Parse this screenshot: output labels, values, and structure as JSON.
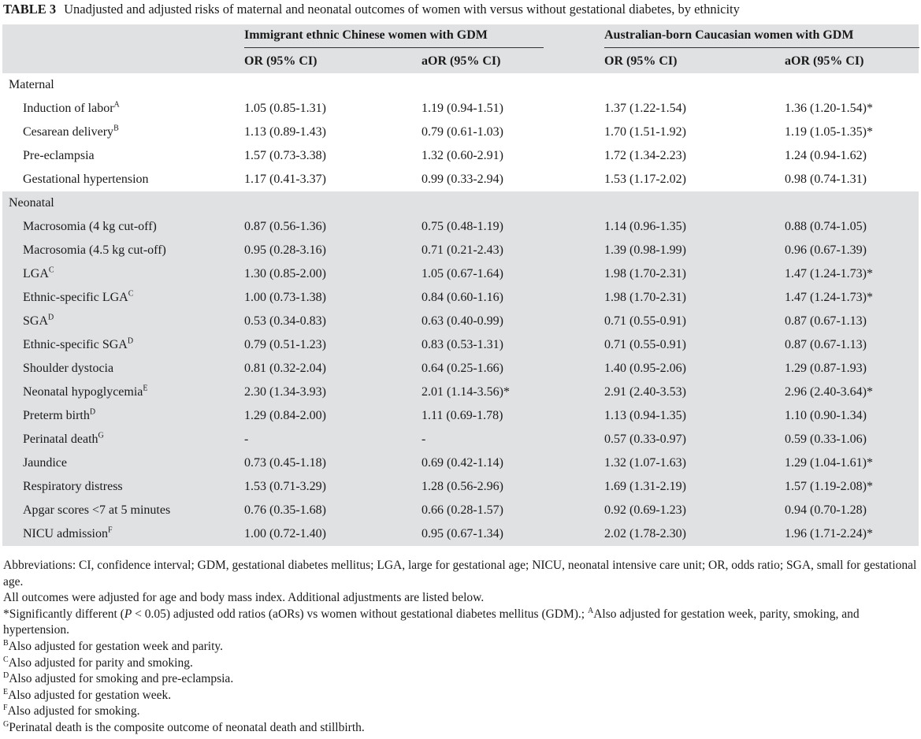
{
  "caption": {
    "label": "TABLE 3",
    "text": "Unadjusted and adjusted risks of maternal and neonatal outcomes of women with versus without gestational diabetes, by ethnicity"
  },
  "header": {
    "group1": "Immigrant ethnic Chinese women with GDM",
    "group2": "Australian-born Caucasian women with GDM",
    "or": "OR (95% CI)",
    "aor": "aOR (95% CI)"
  },
  "sections": {
    "maternal": "Maternal",
    "neonatal": "Neonatal"
  },
  "maternal_rows": [
    {
      "name": "Induction of labor",
      "sup": "A",
      "c1": "1.05 (0.85-1.31)",
      "c2": "1.19 (0.94-1.51)",
      "c3": "1.37 (1.22-1.54)",
      "c4": "1.36 (1.20-1.54)*"
    },
    {
      "name": "Cesarean delivery",
      "sup": "B",
      "c1": "1.13 (0.89-1.43)",
      "c2": "0.79 (0.61-1.03)",
      "c3": "1.70 (1.51-1.92)",
      "c4": "1.19 (1.05-1.35)*"
    },
    {
      "name": "Pre-eclampsia",
      "sup": "",
      "c1": "1.57 (0.73-3.38)",
      "c2": "1.32 (0.60-2.91)",
      "c3": "1.72 (1.34-2.23)",
      "c4": "1.24 (0.94-1.62)"
    },
    {
      "name": "Gestational hypertension",
      "sup": "",
      "c1": "1.17 (0.41-3.37)",
      "c2": "0.99 (0.33-2.94)",
      "c3": "1.53 (1.17-2.02)",
      "c4": "0.98 (0.74-1.31)"
    }
  ],
  "neonatal_rows": [
    {
      "name": "Macrosomia (4 kg cut-off)",
      "sup": "",
      "c1": "0.87 (0.56-1.36)",
      "c2": "0.75 (0.48-1.19)",
      "c3": "1.14 (0.96-1.35)",
      "c4": "0.88 (0.74-1.05)"
    },
    {
      "name": "Macrosomia (4.5 kg cut-off)",
      "sup": "",
      "c1": "0.95 (0.28-3.16)",
      "c2": "0.71 (0.21-2.43)",
      "c3": "1.39 (0.98-1.99)",
      "c4": "0.96 (0.67-1.39)"
    },
    {
      "name": "LGA",
      "sup": "C",
      "c1": "1.30 (0.85-2.00)",
      "c2": "1.05 (0.67-1.64)",
      "c3": "1.98 (1.70-2.31)",
      "c4": "1.47 (1.24-1.73)*"
    },
    {
      "name": "Ethnic-specific LGA",
      "sup": "C",
      "c1": "1.00 (0.73-1.38)",
      "c2": "0.84 (0.60-1.16)",
      "c3": "1.98 (1.70-2.31)",
      "c4": "1.47 (1.24-1.73)*"
    },
    {
      "name": "SGA",
      "sup": "D",
      "c1": "0.53 (0.34-0.83)",
      "c2": "0.63 (0.40-0.99)",
      "c3": "0.71 (0.55-0.91)",
      "c4": "0.87 (0.67-1.13)"
    },
    {
      "name": "Ethnic-specific SGA",
      "sup": "D",
      "c1": "0.79 (0.51-1.23)",
      "c2": "0.83 (0.53-1.31)",
      "c3": "0.71 (0.55-0.91)",
      "c4": "0.87 (0.67-1.13)"
    },
    {
      "name": "Shoulder dystocia",
      "sup": "",
      "c1": "0.81 (0.32-2.04)",
      "c2": "0.64 (0.25-1.66)",
      "c3": "1.40 (0.95-2.06)",
      "c4": "1.29 (0.87-1.93)"
    },
    {
      "name": "Neonatal hypoglycemia",
      "sup": "E",
      "c1": "2.30 (1.34-3.93)",
      "c2": "2.01 (1.14-3.56)*",
      "c3": "2.91 (2.40-3.53)",
      "c4": "2.96 (2.40-3.64)*"
    },
    {
      "name": "Preterm birth",
      "sup": "D",
      "c1": "1.29 (0.84-2.00)",
      "c2": "1.11 (0.69-1.78)",
      "c3": "1.13 (0.94-1.35)",
      "c4": "1.10 (0.90-1.34)"
    },
    {
      "name": "Perinatal death",
      "sup": "G",
      "c1": "-",
      "c2": "-",
      "c3": "0.57 (0.33-0.97)",
      "c4": "0.59 (0.33-1.06)"
    },
    {
      "name": "Jaundice",
      "sup": "",
      "c1": "0.73 (0.45-1.18)",
      "c2": "0.69 (0.42-1.14)",
      "c3": "1.32 (1.07-1.63)",
      "c4": "1.29 (1.04-1.61)*"
    },
    {
      "name": "Respiratory distress",
      "sup": "",
      "c1": "1.53 (0.71-3.29)",
      "c2": "1.28 (0.56-2.96)",
      "c3": "1.69 (1.31-2.19)",
      "c4": "1.57 (1.19-2.08)*"
    },
    {
      "name": "Apgar scores <7 at 5 minutes",
      "sup": "",
      "c1": "0.76 (0.35-1.68)",
      "c2": "0.66 (0.28-1.57)",
      "c3": "0.92 (0.69-1.23)",
      "c4": "0.94 (0.70-1.28)"
    },
    {
      "name": "NICU admission",
      "sup": "F",
      "c1": "1.00 (0.72-1.40)",
      "c2": "0.95 (0.67-1.34)",
      "c3": "2.02 (1.78-2.30)",
      "c4": "1.96 (1.71-2.24)*"
    }
  ],
  "footnotes": {
    "abbreviations": "Abbreviations: CI, confidence interval; GDM, gestational diabetes mellitus; LGA, large for gestational age; NICU, neonatal intensive care unit; OR, odds ratio; SGA, small for gestational age.",
    "adjusted": "All outcomes were adjusted for age and body mass index. Additional adjustments are listed below.",
    "sig_prefix": "*Significantly different (",
    "sig_p": "P",
    "sig_mid": " < 0.05) adjusted odd ratios (aORs) vs women without gestational diabetes mellitus (GDM).; ",
    "sig_a_sup": "A",
    "sig_a_text": "Also adjusted for gestation week, parity, smok­ing, and hypertension.",
    "notes": [
      {
        "sup": "B",
        "text": "Also adjusted for gestation week and parity."
      },
      {
        "sup": "C",
        "text": "Also adjusted for parity and smoking."
      },
      {
        "sup": "D",
        "text": "Also adjusted for smoking and pre-eclampsia."
      },
      {
        "sup": "E",
        "text": "Also adjusted for gestation week."
      },
      {
        "sup": "F",
        "text": "Also adjusted for smoking."
      },
      {
        "sup": "G",
        "text": "Perinatal death is the composite outcome of neonatal death and stillbirth."
      }
    ]
  }
}
